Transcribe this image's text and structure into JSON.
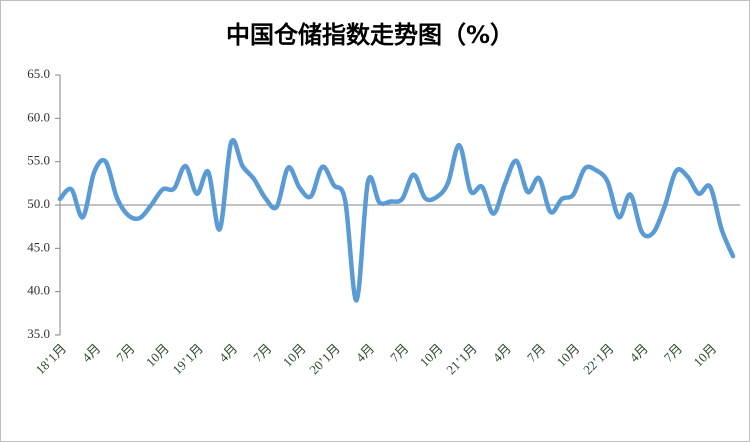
{
  "chart_data": {
    "type": "line",
    "title": "中国仓储指数走势图（%）",
    "categories": [
      "18’1月",
      null,
      null,
      "4月",
      null,
      null,
      "7月",
      null,
      null,
      "10月",
      null,
      null,
      "19’1月",
      null,
      null,
      "4月",
      null,
      null,
      "7月",
      null,
      null,
      "10月",
      null,
      null,
      "20’1月",
      null,
      null,
      "4月",
      null,
      null,
      "7月",
      null,
      null,
      "10月",
      null,
      null,
      "21’1月",
      null,
      null,
      "4月",
      null,
      null,
      "7月",
      null,
      null,
      "10月",
      null,
      null,
      "22’1月",
      null,
      null,
      "4月",
      null,
      null,
      "7月",
      null,
      null,
      "10月",
      null,
      null
    ],
    "values": [
      50.7,
      51.8,
      48.6,
      53.8,
      55.0,
      50.8,
      48.8,
      48.5,
      50.0,
      51.8,
      51.9,
      54.5,
      51.3,
      53.8,
      47.2,
      57.2,
      54.5,
      53.0,
      50.8,
      49.8,
      54.3,
      52.0,
      51.0,
      54.4,
      52.3,
      50.5,
      39.0,
      52.7,
      50.3,
      50.4,
      50.7,
      53.5,
      50.8,
      50.9,
      52.5,
      56.9,
      51.6,
      52.1,
      49.0,
      52.4,
      55.1,
      51.5,
      53.1,
      49.2,
      50.7,
      51.2,
      54.2,
      54.0,
      52.7,
      48.6,
      51.2,
      46.9,
      46.8,
      49.8,
      53.9,
      53.3,
      51.3,
      52.1,
      47.2,
      44.1
    ],
    "color": "#5b9bd5",
    "ylim": [
      35,
      65
    ],
    "yticks": [
      {
        "value": 35,
        "label": "35.0"
      },
      {
        "value": 40,
        "label": "40.0"
      },
      {
        "value": 45,
        "label": "45.0"
      },
      {
        "value": 50,
        "label": "50.0"
      },
      {
        "value": 55,
        "label": "55.0"
      },
      {
        "value": 60,
        "label": "60.0"
      },
      {
        "value": 65,
        "label": "65.0"
      }
    ],
    "x_axis_at": 50
  }
}
